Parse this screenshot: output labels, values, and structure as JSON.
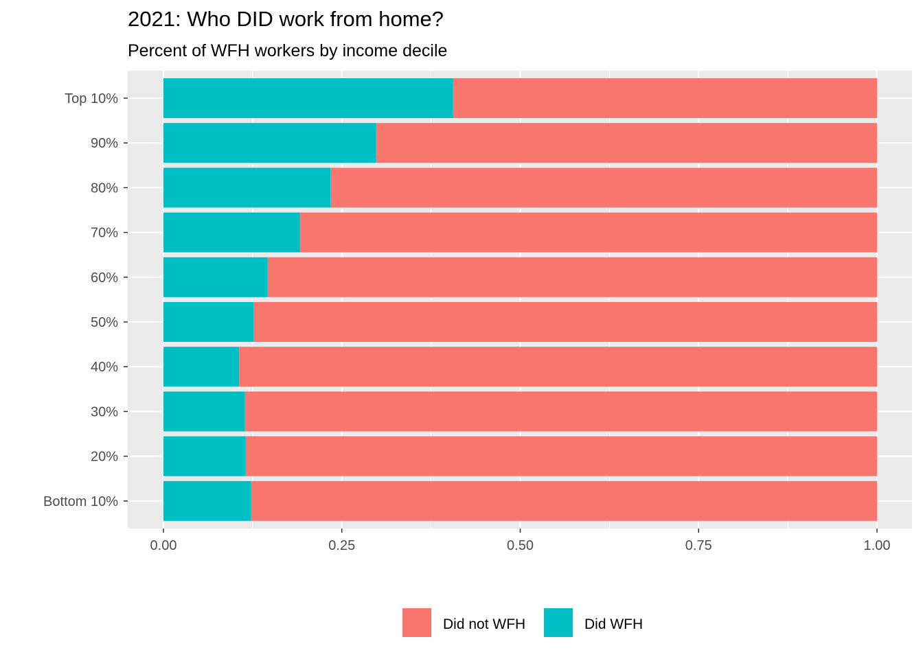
{
  "chart_data": {
    "type": "bar",
    "orientation": "horizontal",
    "stacked": true,
    "title": "2021: Who DID work from home?",
    "subtitle": "Percent of WFH workers by income decile",
    "categories": [
      "Top 10%",
      "90%",
      "80%",
      "70%",
      "60%",
      "50%",
      "40%",
      "30%",
      "20%",
      "Bottom 10%"
    ],
    "series": [
      {
        "name": "Did WFH",
        "color": "#00BFC4",
        "values": [
          0.406,
          0.298,
          0.234,
          0.191,
          0.146,
          0.126,
          0.106,
          0.114,
          0.115,
          0.123
        ]
      },
      {
        "name": "Did not WFH",
        "color": "#F8766D",
        "values": [
          0.594,
          0.702,
          0.766,
          0.809,
          0.854,
          0.874,
          0.894,
          0.886,
          0.885,
          0.877
        ]
      }
    ],
    "xlim": [
      0,
      1
    ],
    "x_ticks": [
      "0.00",
      "0.25",
      "0.50",
      "0.75",
      "1.00"
    ],
    "x_tick_values": [
      0,
      0.25,
      0.5,
      0.75,
      1.0
    ],
    "grid": true,
    "panel_background": "#EBEBEB",
    "legend": {
      "position": "bottom",
      "entries": [
        "Did not WFH",
        "Did WFH"
      ]
    }
  }
}
